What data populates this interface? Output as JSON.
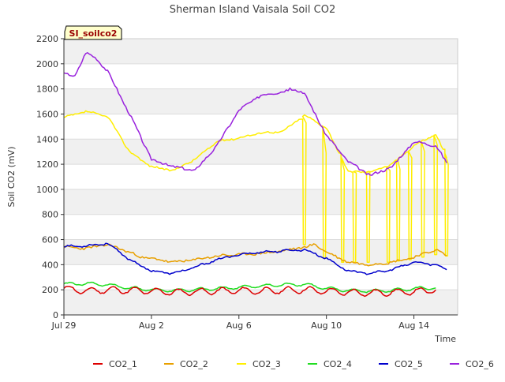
{
  "chart_data": {
    "type": "line",
    "title": "Sherman Island Vaisala Soil CO2",
    "xlabel": "Time",
    "ylabel": "Soil CO2 (mV)",
    "site_label": "SI_soilco2",
    "ylim": [
      0,
      2200
    ],
    "yticks": [
      0,
      200,
      400,
      600,
      800,
      1000,
      1200,
      1400,
      1600,
      1800,
      2000,
      2200
    ],
    "xlim": [
      "2023-07-29",
      "2023-08-16"
    ],
    "xticks": [
      {
        "date": "2023-07-29",
        "label": "Jul 29"
      },
      {
        "date": "2023-08-02",
        "label": "Aug 2"
      },
      {
        "date": "2023-08-06",
        "label": "Aug 6"
      },
      {
        "date": "2023-08-10",
        "label": "Aug 10"
      },
      {
        "date": "2023-08-14",
        "label": "Aug 14"
      }
    ],
    "grid": "horizontal bands",
    "legend": "bottom",
    "series": [
      {
        "name": "CO2_1",
        "color": "#dd0000",
        "x": [
          "2023-07-29",
          "2023-07-30",
          "2023-07-31",
          "2023-08-01",
          "2023-08-02",
          "2023-08-03",
          "2023-08-04",
          "2023-08-05",
          "2023-08-06",
          "2023-08-07",
          "2023-08-08",
          "2023-08-09",
          "2023-08-10",
          "2023-08-11",
          "2023-08-12",
          "2023-08-13",
          "2023-08-14",
          "2023-08-15"
        ],
        "values": [
          210,
          190,
          200,
          195,
          190,
          180,
          185,
          190,
          195,
          190,
          195,
          200,
          190,
          180,
          175,
          180,
          185,
          200
        ]
      },
      {
        "name": "CO2_2",
        "color": "#e8a000",
        "x": [
          "2023-07-29",
          "2023-07-30",
          "2023-07-31",
          "2023-08-01",
          "2023-08-01 12:00",
          "2023-08-02",
          "2023-08-03",
          "2023-08-04",
          "2023-08-05",
          "2023-08-06",
          "2023-08-07",
          "2023-08-08",
          "2023-08-09",
          "2023-08-09 12:00",
          "2023-08-10",
          "2023-08-11",
          "2023-08-12",
          "2023-08-13",
          "2023-08-14",
          "2023-08-15",
          "2023-08-15 12:00"
        ],
        "values": [
          540,
          530,
          560,
          500,
          460,
          450,
          420,
          440,
          470,
          480,
          490,
          510,
          540,
          560,
          500,
          420,
          400,
          420,
          460,
          520,
          470
        ]
      },
      {
        "name": "CO2_3",
        "color": "#ffee00",
        "x": [
          "2023-07-29",
          "2023-07-30",
          "2023-07-31",
          "2023-08-01",
          "2023-08-02",
          "2023-08-03",
          "2023-08-04",
          "2023-08-05",
          "2023-08-06",
          "2023-08-07",
          "2023-08-08",
          "2023-08-09",
          "2023-08-10",
          "2023-08-11",
          "2023-08-12",
          "2023-08-13",
          "2023-08-14",
          "2023-08-15",
          "2023-08-15 12:00"
        ],
        "values": [
          1570,
          1620,
          1580,
          1300,
          1180,
          1150,
          1240,
          1380,
          1410,
          1450,
          1460,
          1590,
          1490,
          1140,
          1140,
          1200,
          1350,
          1440,
          1250
        ]
      },
      {
        "name": "CO2_4",
        "color": "#22dd22",
        "x": [
          "2023-07-29",
          "2023-07-30",
          "2023-07-31",
          "2023-08-01",
          "2023-08-02",
          "2023-08-03",
          "2023-08-04",
          "2023-08-05",
          "2023-08-06",
          "2023-08-07",
          "2023-08-08",
          "2023-08-09",
          "2023-08-10",
          "2023-08-11",
          "2023-08-12",
          "2023-08-13",
          "2023-08-14",
          "2023-08-15"
        ],
        "values": [
          245,
          250,
          240,
          215,
          200,
          195,
          200,
          210,
          220,
          230,
          240,
          245,
          210,
          195,
          190,
          195,
          210,
          215
        ]
      },
      {
        "name": "CO2_5",
        "color": "#0000cc",
        "x": [
          "2023-07-29",
          "2023-07-30",
          "2023-07-31",
          "2023-08-01",
          "2023-08-02",
          "2023-08-03",
          "2023-08-04",
          "2023-08-05",
          "2023-08-06",
          "2023-08-07",
          "2023-08-08",
          "2023-08-09",
          "2023-08-10",
          "2023-08-11",
          "2023-08-12",
          "2023-08-13",
          "2023-08-14",
          "2023-08-15",
          "2023-08-15 12:00"
        ],
        "values": [
          545,
          550,
          570,
          440,
          350,
          330,
          380,
          440,
          480,
          500,
          510,
          520,
          450,
          350,
          330,
          360,
          420,
          400,
          360
        ]
      },
      {
        "name": "CO2_6",
        "color": "#9922dd",
        "x": [
          "2023-07-29",
          "2023-07-29 12:00",
          "2023-07-30",
          "2023-07-30 12:00",
          "2023-07-31",
          "2023-08-01",
          "2023-08-02",
          "2023-08-03",
          "2023-08-04",
          "2023-08-05",
          "2023-08-06",
          "2023-08-07",
          "2023-08-08",
          "2023-08-08 12:00",
          "2023-08-09",
          "2023-08-10",
          "2023-08-11",
          "2023-08-12",
          "2023-08-13",
          "2023-08-14",
          "2023-08-15",
          "2023-08-15 12:00"
        ],
        "values": [
          1920,
          1900,
          2090,
          2040,
          1940,
          1600,
          1240,
          1180,
          1150,
          1350,
          1630,
          1750,
          1780,
          1800,
          1760,
          1430,
          1220,
          1110,
          1180,
          1380,
          1350,
          1210
        ]
      }
    ],
    "co2_3_spikes": [
      {
        "start": "2023-08-08 22:00",
        "down": 560,
        "up": 1530
      },
      {
        "start": "2023-08-09 20:00",
        "down": 450,
        "up": 1290
      },
      {
        "start": "2023-08-10 16:00",
        "down": 420,
        "up": 1150
      },
      {
        "start": "2023-08-11 05:00",
        "down": 420,
        "up": 1130
      },
      {
        "start": "2023-08-11 20:00",
        "down": 420,
        "up": 1140
      },
      {
        "start": "2023-08-12 18:00",
        "down": 420,
        "up": 1150
      },
      {
        "start": "2023-08-13 05:00",
        "down": 430,
        "up": 1160
      },
      {
        "start": "2023-08-13 18:00",
        "down": 440,
        "up": 1250
      },
      {
        "start": "2023-08-14 08:00",
        "down": 460,
        "up": 1300
      },
      {
        "start": "2023-08-14 22:00",
        "down": 480,
        "up": 1350
      },
      {
        "start": "2023-08-15 10:00",
        "down": 470,
        "up": 1200
      }
    ]
  }
}
